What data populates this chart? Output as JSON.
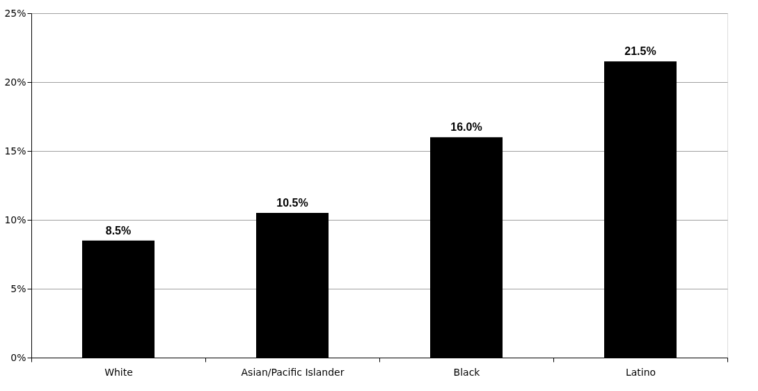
{
  "chart_data": {
    "type": "bar",
    "categories": [
      "White",
      "Asian/Pacific Islander",
      "Black",
      "Latino"
    ],
    "values": [
      8.5,
      10.5,
      16.0,
      21.5
    ],
    "value_labels": [
      "8.5%",
      "10.5%",
      "16.0%",
      "21.5%"
    ],
    "color": "#000000",
    "ylim": [
      0,
      25
    ],
    "yticks": [
      {
        "value": 0,
        "label": "0%"
      },
      {
        "value": 5,
        "label": "5%"
      },
      {
        "value": 10,
        "label": "10%"
      },
      {
        "value": 15,
        "label": "15%"
      },
      {
        "value": 20,
        "label": "20%"
      },
      {
        "value": 25,
        "label": "25%"
      }
    ],
    "grid": "y"
  }
}
